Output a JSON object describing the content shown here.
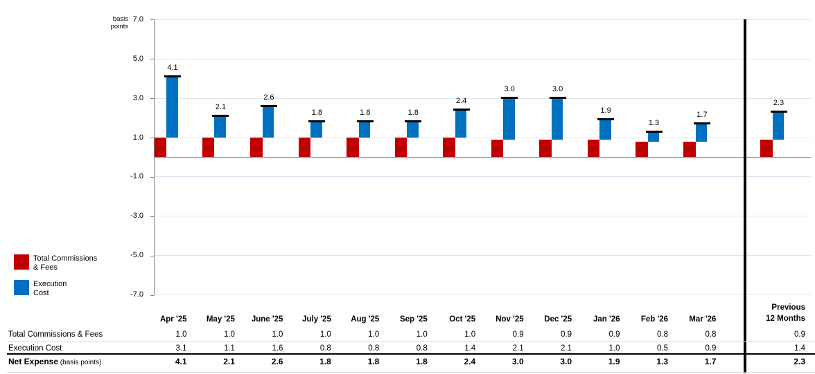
{
  "colors": {
    "commissions_red": "#C00000",
    "execution_blue": "#0070C0",
    "gridline": "#DCE6F1",
    "axis_gray": "#808080",
    "zero_line_gray": "#868686",
    "table_rule_gray": "#D9D9D9",
    "divider_black": "#000000"
  },
  "chart_data": {
    "type": "bar",
    "subtype": "stacked-waterfall",
    "title": "",
    "unit_lines": [
      "basis",
      "points"
    ],
    "ylabel": "basis points",
    "xlabel": "",
    "ylim": [
      -7.0,
      7.0
    ],
    "yticks": [
      7.0,
      5.0,
      3.0,
      1.0,
      -1.0,
      -3.0,
      -5.0,
      -7.0
    ],
    "grid": true,
    "legend_position": "left",
    "categories": [
      "Apr '25",
      "May '25",
      "June '25",
      "July '25",
      "Aug '25",
      "Sep '25",
      "Oct '25",
      "Nov '25",
      "Dec '25",
      "Jan '26",
      "Feb '26",
      "Mar '26",
      "Previous 12 Months"
    ],
    "series": [
      {
        "name": "Total Commissions & Fees",
        "color": "#C00000",
        "values": [
          1.0,
          1.0,
          1.0,
          1.0,
          1.0,
          1.0,
          1.0,
          0.9,
          0.9,
          0.9,
          0.8,
          0.8,
          0.9
        ]
      },
      {
        "name": "Execution Cost",
        "color": "#0070C0",
        "values": [
          3.1,
          1.1,
          1.6,
          0.8,
          0.8,
          0.8,
          1.4,
          2.1,
          2.1,
          1.0,
          0.5,
          0.9,
          1.4
        ]
      }
    ],
    "totals": [
      4.1,
      2.1,
      2.6,
      1.8,
      1.8,
      1.8,
      2.4,
      3.0,
      3.0,
      1.9,
      1.3,
      1.7,
      2.3
    ],
    "bar_labels": [
      "4.1",
      "2.1",
      "2.6",
      "1.8",
      "1.8",
      "1.8",
      "2.4",
      "3.0",
      "3.0",
      "1.9",
      "1.3",
      "1.7",
      "2.3"
    ]
  },
  "legend": {
    "items": [
      {
        "lines": [
          "Total Commissions",
          "& Fees"
        ],
        "color": "#C00000"
      },
      {
        "lines": [
          "Execution",
          "Cost"
        ],
        "color": "#0070C0"
      }
    ]
  },
  "table": {
    "month_headers": [
      "Apr '25",
      "May '25",
      "June '25",
      "July '25",
      "Aug '25",
      "Sep '25",
      "Oct '25",
      "Nov '25",
      "Dec '25",
      "Jan '26",
      "Feb '26",
      "Mar '26"
    ],
    "prev_header_lines": [
      "Previous",
      "12 Months"
    ],
    "rows": [
      {
        "label": "Total Commissions & Fees",
        "values": [
          "1.0",
          "1.0",
          "1.0",
          "1.0",
          "1.0",
          "1.0",
          "1.0",
          "0.9",
          "0.9",
          "0.9",
          "0.8",
          "0.8",
          "0.9"
        ]
      },
      {
        "label": "Execution Cost",
        "values": [
          "3.1",
          "1.1",
          "1.6",
          "0.8",
          "0.8",
          "0.8",
          "1.4",
          "2.1",
          "2.1",
          "1.0",
          "0.5",
          "0.9",
          "1.4"
        ]
      }
    ],
    "net_row": {
      "label": "Net Expense",
      "sublabel": "(basis points)",
      "values": [
        "4.1",
        "2.1",
        "2.6",
        "1.8",
        "1.8",
        "1.8",
        "2.4",
        "3.0",
        "3.0",
        "1.9",
        "1.3",
        "1.7",
        "2.3"
      ]
    }
  }
}
